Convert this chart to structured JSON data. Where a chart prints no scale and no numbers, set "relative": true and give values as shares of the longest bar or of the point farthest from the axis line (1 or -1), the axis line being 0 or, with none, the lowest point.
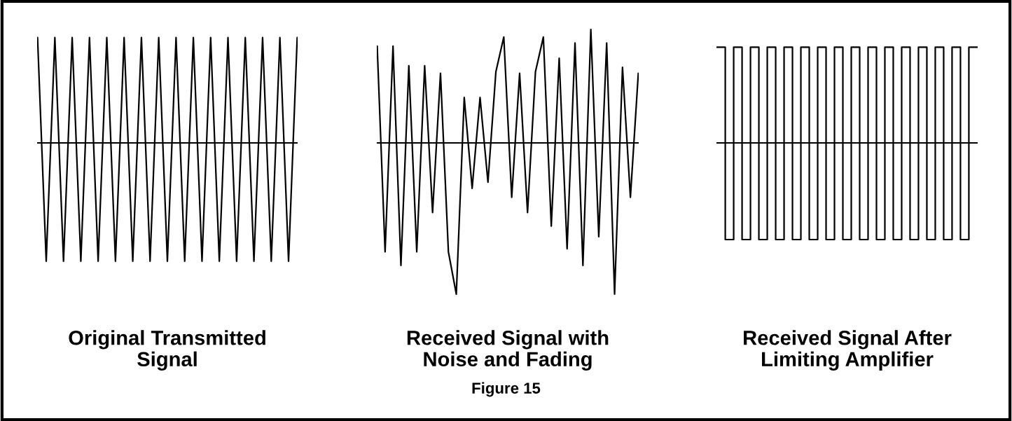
{
  "chart_data": [
    {
      "type": "line",
      "relative": true,
      "xlabel": "Original Transmitted\nSignal",
      "categories": [
        null,
        null,
        null,
        null,
        null,
        null,
        null,
        null,
        null,
        null,
        null,
        null,
        null,
        null,
        null,
        null,
        null,
        null,
        null,
        null,
        null,
        null,
        null,
        null,
        null,
        null,
        null,
        null,
        null,
        null,
        null
      ],
      "series": [
        {
          "color": "#000000",
          "values": [
            0.89,
            -1,
            0.89,
            -1,
            0.89,
            -1,
            0.89,
            -1,
            0.89,
            -1,
            0.89,
            -1,
            0.89,
            -1,
            0.89,
            -1,
            0.89,
            -1,
            0.89,
            -1,
            0.89,
            -1,
            0.89,
            -1,
            0.89,
            -1,
            0.89,
            -1,
            0.89,
            -1,
            0.89
          ]
        }
      ]
    },
    {
      "type": "line",
      "relative": true,
      "xlabel": "Received Signal with\nNoise and Fading",
      "annotations": [
        "Figure 15"
      ],
      "categories": [
        null,
        null,
        null,
        null,
        null,
        null,
        null,
        null,
        null,
        null,
        null,
        null,
        null,
        null,
        null,
        null,
        null,
        null,
        null,
        null,
        null,
        null,
        null,
        null,
        null,
        null,
        null,
        null,
        null,
        null,
        null,
        null,
        null,
        null
      ],
      "series": [
        {
          "color": "#000000",
          "values": [
            0.64,
            -0.72,
            0.64,
            -0.81,
            0.51,
            -0.72,
            0.51,
            -0.46,
            0.46,
            -0.72,
            -1,
            0.3,
            -0.3,
            0.3,
            -0.26,
            0.47,
            0.7,
            -0.36,
            0.46,
            -0.46,
            0.47,
            0.7,
            -0.55,
            0.56,
            -0.7,
            0.66,
            -0.81,
            0.75,
            -0.62,
            0.66,
            -1,
            0.5,
            -0.36,
            0.46
          ]
        }
      ]
    },
    {
      "type": "step",
      "relative": true,
      "xlabel": "Received Signal After\nLimiting Amplifier",
      "categories": [
        null,
        null,
        null,
        null,
        null,
        null,
        null,
        null,
        null,
        null,
        null,
        null,
        null,
        null,
        null,
        null,
        null,
        null,
        null,
        null,
        null,
        null,
        null,
        null,
        null,
        null,
        null,
        null,
        null,
        null,
        null,
        null
      ],
      "series": [
        {
          "color": "#000000",
          "values": [
            0.99,
            -1,
            0.99,
            -1,
            0.99,
            -1,
            0.99,
            -1,
            0.99,
            -1,
            0.99,
            -1,
            0.99,
            -1,
            0.99,
            -1,
            0.99,
            -1,
            0.99,
            -1,
            0.99,
            -1,
            0.99,
            -1,
            0.99,
            -1,
            0.99,
            -1,
            0.99,
            -1,
            0.99,
            0.99
          ]
        }
      ]
    }
  ]
}
